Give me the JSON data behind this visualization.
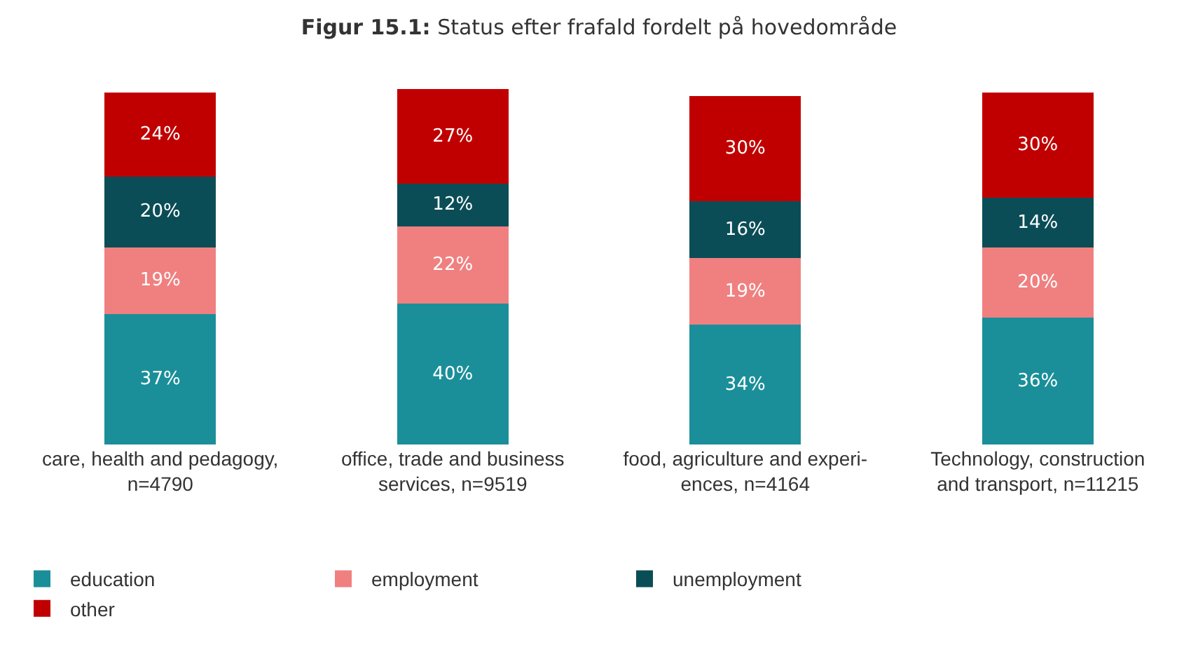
{
  "chart_data": {
    "type": "bar",
    "stacked": true,
    "title": "Figur 15.1: Status efter frafald fordelt på hovedområde",
    "categories": [
      "care, health and pedagogy,\nn=4790",
      "office, trade and business\nservices, n=9519",
      "food, agriculture and experi-\nences, n=4164",
      "Technology, construction\nand transport, n=11215"
    ],
    "series": [
      {
        "name": "education",
        "color": "#1a8f99",
        "values": [
          37,
          40,
          34,
          36
        ],
        "value_labels": [
          "37%",
          "40%",
          "34%",
          "36%"
        ]
      },
      {
        "name": "employment",
        "color": "#f08080",
        "values": [
          19,
          22,
          19,
          20
        ],
        "value_labels": [
          "19%",
          "22%",
          "19%",
          "20%"
        ]
      },
      {
        "name": "unemployment",
        "color": "#0b4d57",
        "values": [
          20,
          12,
          16,
          14
        ],
        "value_labels": [
          "20%",
          "12%",
          "16%",
          "14%"
        ]
      },
      {
        "name": "other",
        "color": "#c00000",
        "values": [
          24,
          27,
          30,
          30
        ],
        "value_labels": [
          "24%",
          "27%",
          "30%",
          "30%"
        ]
      }
    ],
    "legend": "bottom"
  }
}
